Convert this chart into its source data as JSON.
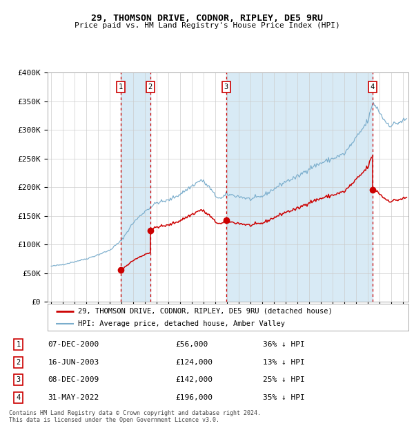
{
  "title_line1": "29, THOMSON DRIVE, CODNOR, RIPLEY, DE5 9RU",
  "title_line2": "Price paid vs. HM Land Registry's House Price Index (HPI)",
  "legend_line1": "29, THOMSON DRIVE, CODNOR, RIPLEY, DE5 9RU (detached house)",
  "legend_line2": "HPI: Average price, detached house, Amber Valley",
  "red_color": "#cc0000",
  "blue_color": "#7aadcc",
  "blue_fill": "#d8eaf5",
  "transactions": [
    {
      "num": 1,
      "x": 2000.93,
      "price": 56000,
      "label": "07-DEC-2000",
      "price_label": "£56,000",
      "pct": "36% ↓ HPI"
    },
    {
      "num": 2,
      "x": 2003.46,
      "price": 124000,
      "label": "16-JUN-2003",
      "price_label": "£124,000",
      "pct": "13% ↓ HPI"
    },
    {
      "num": 3,
      "x": 2009.94,
      "price": 142000,
      "label": "08-DEC-2009",
      "price_label": "£142,000",
      "pct": "25% ↓ HPI"
    },
    {
      "num": 4,
      "x": 2022.41,
      "price": 196000,
      "label": "31-MAY-2022",
      "price_label": "£196,000",
      "pct": "35% ↓ HPI"
    }
  ],
  "ylim": [
    0,
    400000
  ],
  "xlim_start": 1994.7,
  "xlim_end": 2025.5,
  "yticks": [
    0,
    50000,
    100000,
    150000,
    200000,
    250000,
    300000,
    350000,
    400000
  ],
  "ytick_labels": [
    "£0",
    "£50K",
    "£100K",
    "£150K",
    "£200K",
    "£250K",
    "£300K",
    "£350K",
    "£400K"
  ],
  "footer": "Contains HM Land Registry data © Crown copyright and database right 2024.\nThis data is licensed under the Open Government Licence v3.0.",
  "bg_color": "#ffffff",
  "grid_color": "#cccccc",
  "hpi_anchors": {
    "1995.0": 62000,
    "1996.0": 65000,
    "1997.0": 70000,
    "1998.0": 75000,
    "1999.0": 82000,
    "2000.0": 90000,
    "2001.0": 107000,
    "2002.0": 138000,
    "2003.0": 158000,
    "2004.0": 173000,
    "2005.0": 177000,
    "2006.0": 188000,
    "2007.0": 202000,
    "2007.8": 213000,
    "2008.5": 200000,
    "2009.0": 185000,
    "2009.5": 180000,
    "2010.0": 188000,
    "2011.0": 184000,
    "2012.0": 179000,
    "2013.0": 184000,
    "2014.0": 197000,
    "2015.0": 210000,
    "2016.0": 218000,
    "2017.0": 233000,
    "2018.0": 242000,
    "2019.0": 250000,
    "2020.0": 258000,
    "2021.0": 285000,
    "2022.0": 315000,
    "2022.5": 348000,
    "2023.0": 332000,
    "2023.5": 315000,
    "2024.0": 308000,
    "2024.5": 312000,
    "2025.3": 318000
  }
}
